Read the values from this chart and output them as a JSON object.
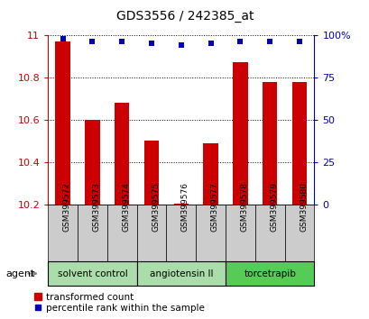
{
  "title": "GDS3556 / 242385_at",
  "samples": [
    "GSM399572",
    "GSM399573",
    "GSM399574",
    "GSM399575",
    "GSM399576",
    "GSM399577",
    "GSM399578",
    "GSM399579",
    "GSM399580"
  ],
  "bar_values": [
    10.97,
    10.6,
    10.68,
    10.5,
    10.2,
    10.49,
    10.87,
    10.78,
    10.78
  ],
  "percentile_values": [
    98,
    96,
    96,
    95,
    94,
    95,
    96,
    96,
    96
  ],
  "ylim_left": [
    10.2,
    11.0
  ],
  "ylim_right": [
    0,
    100
  ],
  "yticks_left": [
    10.2,
    10.4,
    10.6,
    10.8,
    11.0
  ],
  "ytick_labels_left": [
    "10.2",
    "10.4",
    "10.6",
    "10.8",
    "11"
  ],
  "yticks_right": [
    0,
    25,
    50,
    75,
    100
  ],
  "ytick_labels_right": [
    "0",
    "25",
    "50",
    "75",
    "100%"
  ],
  "bar_color": "#CC0000",
  "dot_color": "#0000BB",
  "left_axis_color": "#CC0000",
  "right_axis_color": "#0000BB",
  "groups": [
    {
      "label": "solvent control",
      "start": 0,
      "end": 2,
      "color": "#AADDAA"
    },
    {
      "label": "angiotensin II",
      "start": 3,
      "end": 5,
      "color": "#AADDAA"
    },
    {
      "label": "torcetrapib",
      "start": 6,
      "end": 8,
      "color": "#55CC55"
    }
  ],
  "agent_label": "agent",
  "legend_bar_label": "transformed count",
  "legend_dot_label": "percentile rank within the sample",
  "bar_bottom": 10.2,
  "bar_width": 0.5
}
